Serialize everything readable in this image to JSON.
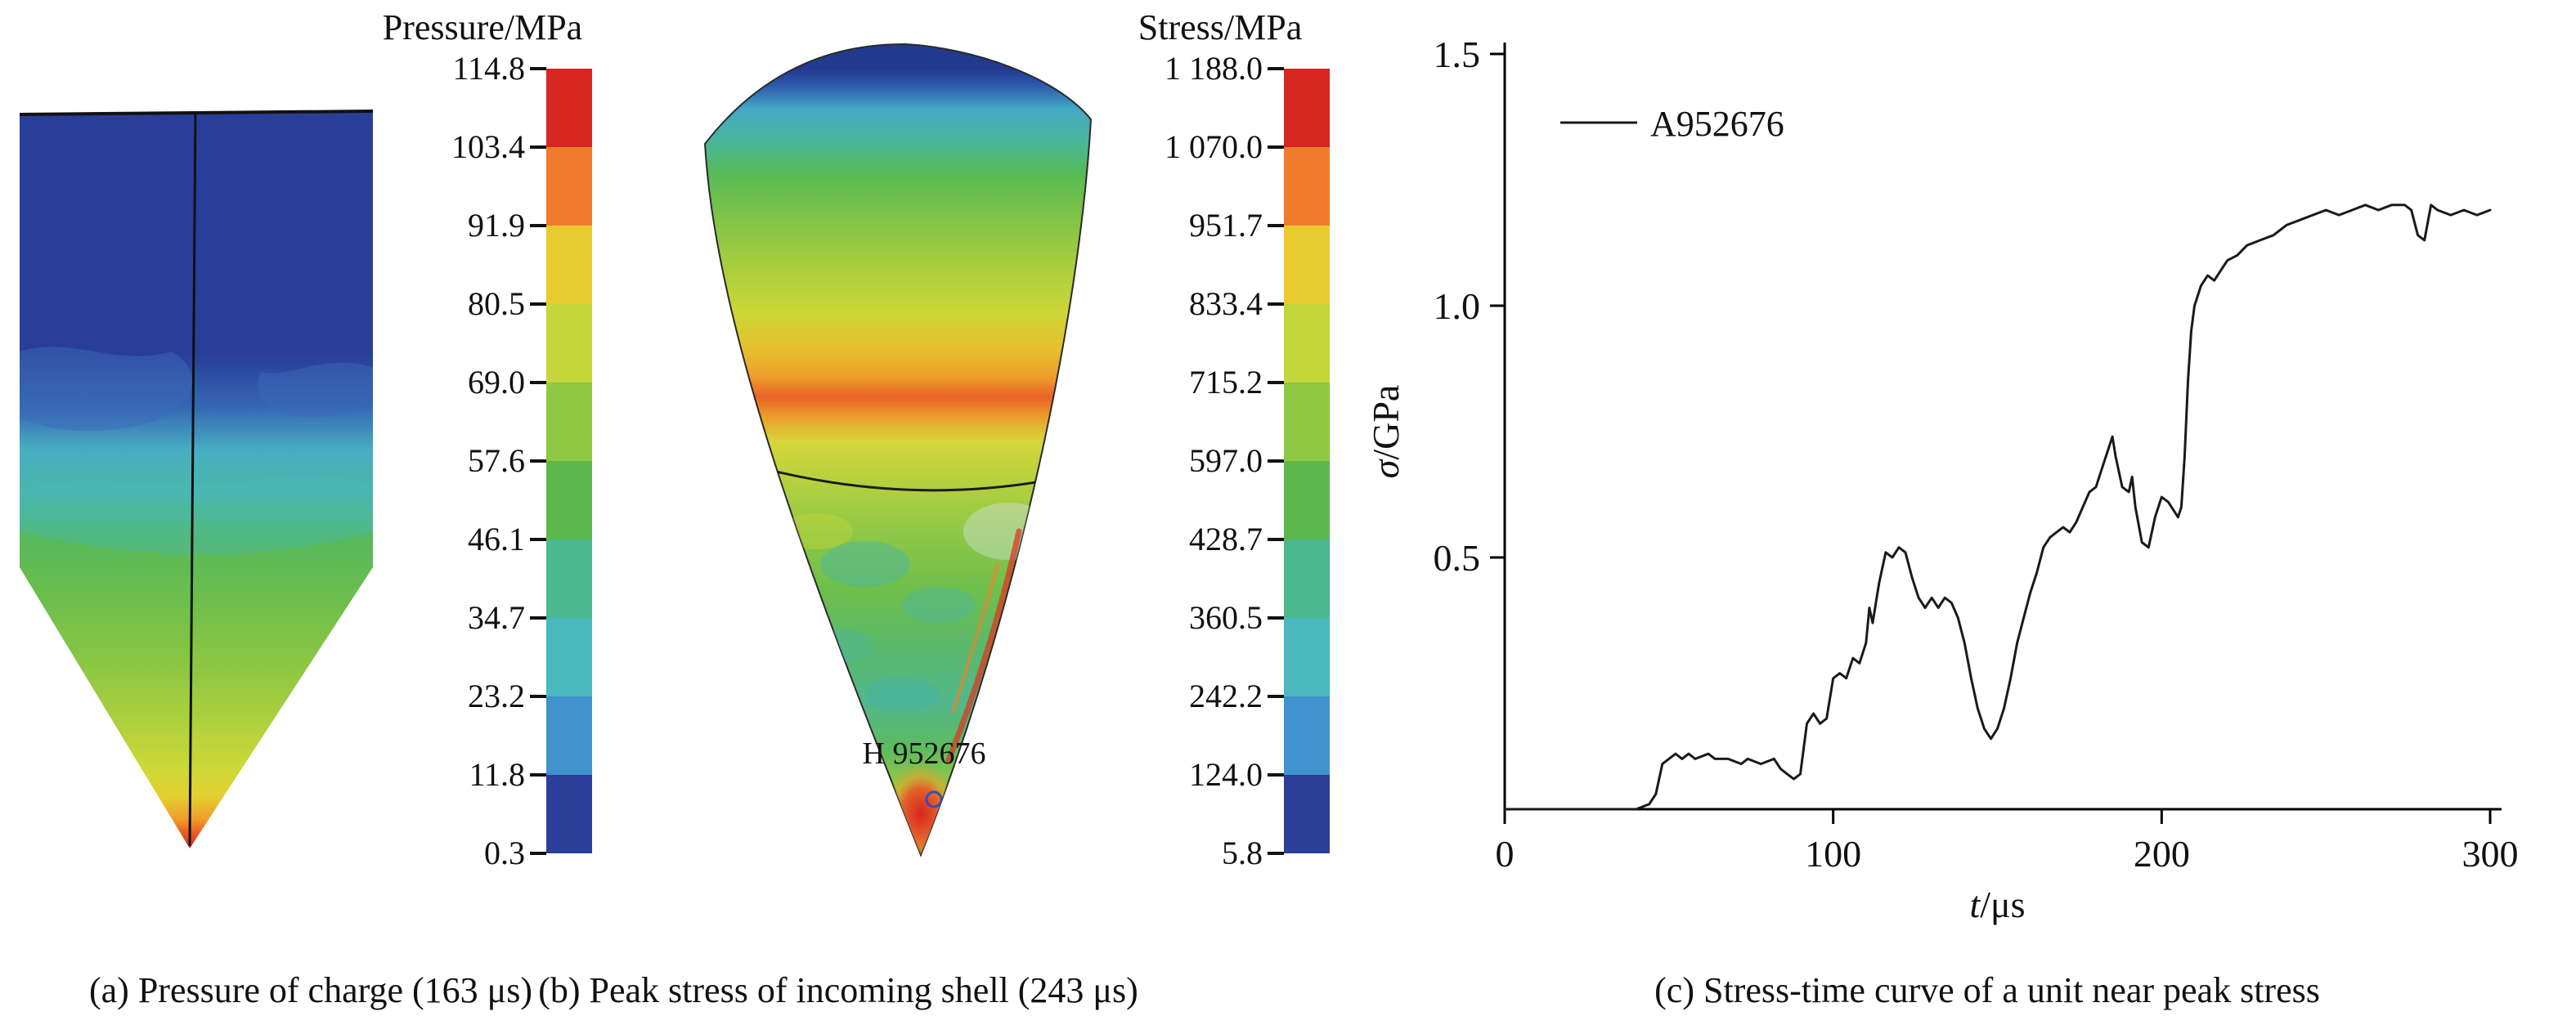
{
  "chart_data": [
    {
      "type": "heatmap",
      "panel": "a",
      "caption": "(a) Pressure of charge (163 μs)",
      "colorbar_title": "Pressure/MPa",
      "colorbar_tick_labels": [
        "114.8",
        "103.4",
        "91.9",
        "80.5",
        "69.0",
        "57.6",
        "46.1",
        "34.7",
        "23.2",
        "11.8",
        "0.3"
      ],
      "colorbar_levels": [
        114.8,
        103.4,
        91.9,
        80.5,
        69.0,
        57.6,
        46.1,
        34.7,
        23.2,
        11.8,
        0.3
      ],
      "colorbar_colors_top_to_bottom": [
        "#d7261f",
        "#ee7c2b",
        "#e8cb2f",
        "#c3d63a",
        "#8fc843",
        "#5cb84b",
        "#4bb88f",
        "#49b9bd",
        "#4192cd",
        "#2b3f99"
      ]
    },
    {
      "type": "heatmap",
      "panel": "b",
      "caption": "(b) Peak stress of incoming shell (243 μs)",
      "colorbar_title": "Stress/MPa",
      "colorbar_tick_labels": [
        "1 188.0",
        "1 070.0",
        "951.7",
        "833.4",
        "715.2",
        "597.0",
        "428.7",
        "360.5",
        "242.2",
        "124.0",
        "5.8"
      ],
      "colorbar_levels": [
        1188.0,
        1070.0,
        951.7,
        833.4,
        715.2,
        597.0,
        428.7,
        360.5,
        242.2,
        124.0,
        5.8
      ],
      "colorbar_colors_top_to_bottom": [
        "#d7261f",
        "#ee7c2b",
        "#e8cb2f",
        "#c3d63a",
        "#8fc843",
        "#5cb84b",
        "#4bb88f",
        "#49b9bd",
        "#4192cd",
        "#2b3f99"
      ],
      "annotation": "H 952676"
    },
    {
      "type": "line",
      "panel": "c",
      "caption": "(c) Stress-time curve of a unit near peak stress",
      "legend": [
        "A952676"
      ],
      "legend_position": "top-left",
      "xlabel": "t/μs",
      "ylabel": "σ/GPa",
      "xlim": [
        0,
        300
      ],
      "ylim": [
        0,
        1.5
      ],
      "grid": false,
      "xticks": {
        "values": [
          0,
          100,
          200,
          300
        ],
        "labels": [
          "0",
          "100",
          "200",
          "300"
        ]
      },
      "yticks": {
        "values": [
          0.5,
          1.0,
          1.5
        ],
        "labels": [
          "0.5",
          "1.0",
          "1.5"
        ]
      },
      "series": [
        {
          "name": "A952676",
          "x": [
            0,
            30,
            40,
            44,
            46,
            48,
            50,
            52,
            54,
            56,
            58,
            62,
            64,
            68,
            72,
            74,
            78,
            82,
            84,
            86,
            88,
            90,
            92,
            94,
            96,
            98,
            100,
            102,
            104,
            106,
            108,
            110,
            111,
            112,
            114,
            116,
            118,
            120,
            122,
            124,
            126,
            128,
            130,
            132,
            134,
            136,
            138,
            140,
            142,
            144,
            146,
            148,
            150,
            152,
            154,
            156,
            158,
            160,
            162,
            164,
            166,
            168,
            170,
            172,
            174,
            176,
            178,
            180,
            182,
            184,
            185,
            186,
            188,
            190,
            191,
            192,
            194,
            196,
            198,
            200,
            202,
            204,
            205,
            206,
            207,
            208,
            209,
            210,
            212,
            214,
            216,
            218,
            220,
            223,
            226,
            230,
            234,
            238,
            242,
            246,
            250,
            254,
            258,
            262,
            266,
            270,
            274,
            276,
            278,
            280,
            282,
            284,
            288,
            292,
            296,
            300
          ],
          "y": [
            0,
            0,
            0,
            0.01,
            0.03,
            0.09,
            0.1,
            0.11,
            0.1,
            0.11,
            0.1,
            0.11,
            0.1,
            0.1,
            0.09,
            0.1,
            0.09,
            0.1,
            0.08,
            0.07,
            0.06,
            0.07,
            0.17,
            0.19,
            0.17,
            0.18,
            0.26,
            0.27,
            0.26,
            0.3,
            0.29,
            0.33,
            0.4,
            0.37,
            0.45,
            0.51,
            0.5,
            0.52,
            0.51,
            0.46,
            0.42,
            0.4,
            0.42,
            0.4,
            0.42,
            0.41,
            0.38,
            0.33,
            0.26,
            0.2,
            0.16,
            0.14,
            0.16,
            0.2,
            0.26,
            0.33,
            0.38,
            0.43,
            0.47,
            0.52,
            0.54,
            0.55,
            0.56,
            0.55,
            0.57,
            0.6,
            0.63,
            0.64,
            0.68,
            0.72,
            0.74,
            0.7,
            0.64,
            0.63,
            0.66,
            0.6,
            0.53,
            0.52,
            0.58,
            0.62,
            0.61,
            0.59,
            0.58,
            0.6,
            0.7,
            0.85,
            0.95,
            1.0,
            1.04,
            1.06,
            1.05,
            1.07,
            1.09,
            1.1,
            1.12,
            1.13,
            1.14,
            1.16,
            1.17,
            1.18,
            1.19,
            1.18,
            1.19,
            1.2,
            1.19,
            1.2,
            1.2,
            1.19,
            1.14,
            1.13,
            1.2,
            1.19,
            1.18,
            1.19,
            1.18,
            1.19
          ]
        }
      ]
    }
  ]
}
